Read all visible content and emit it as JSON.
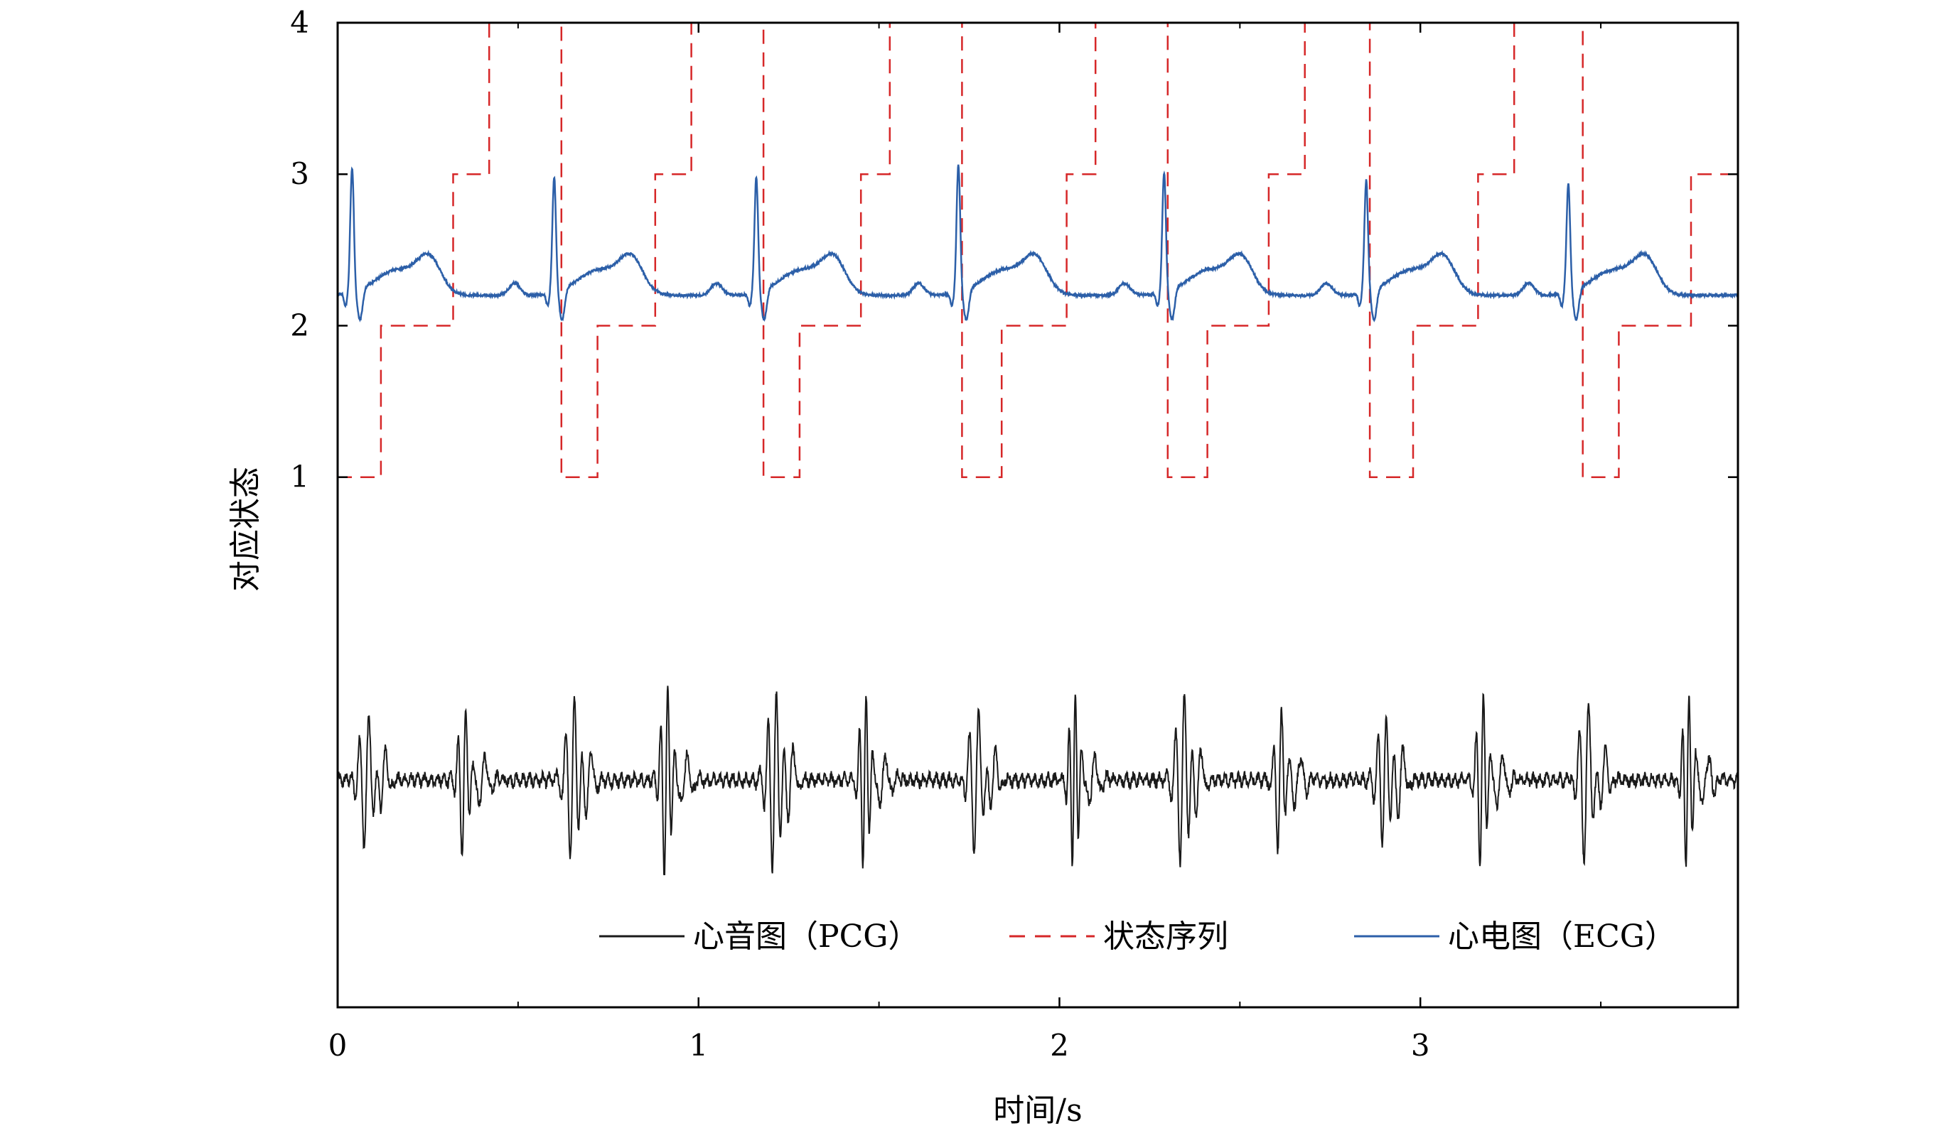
{
  "chart_data": {
    "type": "line",
    "xlabel": "时间/s",
    "ylabel": "对应状态",
    "xlim": [
      0,
      3.88
    ],
    "ylim": [
      -2.5,
      4
    ],
    "x_ticks": [
      "0",
      "1",
      "2",
      "3"
    ],
    "y_ticks": [
      "1",
      "2",
      "3",
      "4"
    ],
    "grid": false,
    "legend_position": "bottom",
    "colors": {
      "pcg": "#1a1a1a",
      "state": "#d62728",
      "ecg": "#2c5fa8"
    },
    "series": [
      {
        "name": "心音图（PCG）",
        "style": "solid",
        "baseline": -1,
        "s1_times": [
          0.08,
          0.65,
          1.21,
          1.77,
          2.34,
          2.9,
          3.46
        ],
        "s2_times": [
          0.35,
          0.91,
          1.46,
          2.04,
          2.61,
          3.17,
          3.74
        ],
        "peak_amplitude": 0.65
      },
      {
        "name": "状态序列",
        "style": "dashed",
        "steps": [
          {
            "x": 0.0,
            "y": 1
          },
          {
            "x": 0.12,
            "y": 2
          },
          {
            "x": 0.32,
            "y": 3
          },
          {
            "x": 0.42,
            "y": 4
          },
          {
            "x": 0.62,
            "y": 1
          },
          {
            "x": 0.72,
            "y": 2
          },
          {
            "x": 0.88,
            "y": 3
          },
          {
            "x": 0.98,
            "y": 4
          },
          {
            "x": 1.18,
            "y": 1
          },
          {
            "x": 1.28,
            "y": 2
          },
          {
            "x": 1.45,
            "y": 3
          },
          {
            "x": 1.53,
            "y": 4
          },
          {
            "x": 1.73,
            "y": 1
          },
          {
            "x": 1.84,
            "y": 2
          },
          {
            "x": 2.02,
            "y": 3
          },
          {
            "x": 2.1,
            "y": 4
          },
          {
            "x": 2.3,
            "y": 1
          },
          {
            "x": 2.41,
            "y": 2
          },
          {
            "x": 2.58,
            "y": 3
          },
          {
            "x": 2.68,
            "y": 4
          },
          {
            "x": 2.86,
            "y": 1
          },
          {
            "x": 2.98,
            "y": 2
          },
          {
            "x": 3.16,
            "y": 3
          },
          {
            "x": 3.26,
            "y": 4
          },
          {
            "x": 3.45,
            "y": 1
          },
          {
            "x": 3.55,
            "y": 2
          },
          {
            "x": 3.75,
            "y": 3
          },
          {
            "x": 3.88,
            "y": 3
          }
        ]
      },
      {
        "name": "心电图（ECG）",
        "style": "solid",
        "baseline": 2.2,
        "r_peak_times": [
          0.04,
          0.6,
          1.16,
          1.72,
          2.29,
          2.85,
          3.41
        ],
        "r_peak_values": [
          3.02,
          2.96,
          2.96,
          3.04,
          2.99,
          2.94,
          2.92
        ],
        "t_wave_peak": 2.56
      }
    ]
  }
}
